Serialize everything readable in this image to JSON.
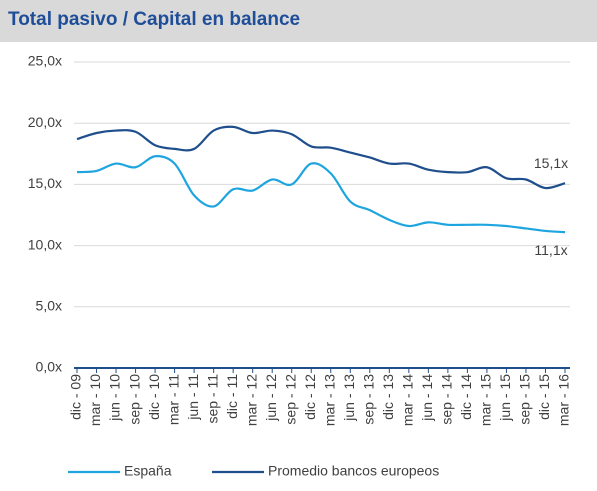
{
  "chart_data": {
    "type": "line",
    "title": "Total pasivo / Capital en balance",
    "categories": [
      "dic - 09",
      "mar - 10",
      "jun - 10",
      "sep - 10",
      "dic - 10",
      "mar - 11",
      "jun - 11",
      "sep - 11",
      "dic - 11",
      "mar - 12",
      "jun - 12",
      "sep - 12",
      "dic - 12",
      "mar - 13",
      "jun - 13",
      "sep - 13",
      "dic - 13",
      "mar - 14",
      "jun - 14",
      "sep - 14",
      "dic - 14",
      "mar - 15",
      "jun - 15",
      "sep - 15",
      "dic - 15",
      "mar - 16"
    ],
    "series": [
      {
        "name": "España",
        "color": "#1ea5e0",
        "values": [
          16.0,
          16.1,
          16.7,
          16.4,
          17.3,
          16.7,
          14.1,
          13.2,
          14.6,
          14.5,
          15.4,
          15.0,
          16.7,
          15.9,
          13.6,
          12.9,
          12.1,
          11.6,
          11.9,
          11.7,
          11.7,
          11.7,
          11.6,
          11.4,
          11.2,
          11.1
        ],
        "value_labels": [
          null,
          null,
          null,
          null,
          null,
          null,
          null,
          null,
          null,
          null,
          null,
          null,
          null,
          null,
          null,
          null,
          null,
          null,
          null,
          null,
          null,
          null,
          null,
          null,
          null,
          "11,1x"
        ]
      },
      {
        "name": "Promedio bancos europeos",
        "color": "#1f4e8c",
        "values": [
          18.7,
          19.2,
          19.4,
          19.3,
          18.2,
          17.9,
          17.9,
          19.4,
          19.7,
          19.2,
          19.4,
          19.1,
          18.1,
          18.0,
          17.6,
          17.2,
          16.7,
          16.7,
          16.2,
          16.0,
          16.0,
          16.4,
          15.5,
          15.4,
          14.7,
          15.1
        ],
        "value_labels": [
          null,
          null,
          null,
          null,
          null,
          null,
          null,
          null,
          null,
          null,
          null,
          null,
          null,
          null,
          null,
          null,
          null,
          null,
          null,
          null,
          null,
          null,
          null,
          null,
          null,
          "15,1x"
        ]
      }
    ],
    "ylim": [
      0,
      25
    ],
    "yticks": [
      {
        "value": 0,
        "label": "0,0x"
      },
      {
        "value": 5,
        "label": "5,0x"
      },
      {
        "value": 10,
        "label": "10,0x"
      },
      {
        "value": 15,
        "label": "15,0x"
      },
      {
        "value": 20,
        "label": "20,0x"
      },
      {
        "value": 25,
        "label": "25,0x"
      }
    ],
    "grid": true,
    "legend": "bottom"
  }
}
